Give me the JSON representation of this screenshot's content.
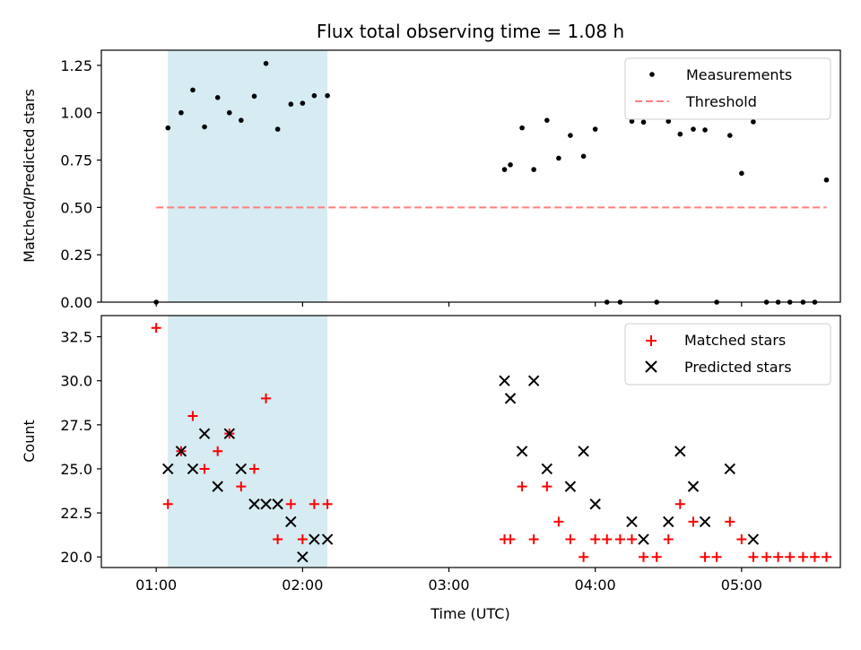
{
  "chart_data": [
    {
      "type": "scatter",
      "title": "Flux total observing time = 1.08 h",
      "xlabel": "",
      "ylabel": "Matched/Predicted stars",
      "ylim": [
        0.0,
        1.33
      ],
      "xlim": [
        0.625,
        5.675
      ],
      "yticks": [
        0.0,
        0.25,
        0.5,
        0.75,
        1.0,
        1.25
      ],
      "ytick_labels": [
        "0.00",
        "0.25",
        "0.50",
        "0.75",
        "1.00",
        "1.25"
      ],
      "shaded_span": {
        "x_start": 1.08,
        "x_end": 2.17,
        "color": "#add8e6"
      },
      "legend": {
        "placement": "top-right",
        "entries": [
          "Measurements",
          "Threshold"
        ]
      },
      "series": [
        {
          "name": "Measurements",
          "marker": "dot",
          "color": "#000000",
          "x": [
            1.0,
            1.08,
            1.17,
            1.25,
            1.33,
            1.42,
            1.5,
            1.58,
            1.67,
            1.75,
            1.83,
            1.92,
            2.0,
            2.08,
            2.17,
            3.38,
            3.42,
            3.5,
            3.58,
            3.67,
            3.75,
            3.83,
            3.92,
            4.0,
            4.08,
            4.17,
            4.25,
            4.33,
            4.42,
            4.5,
            4.58,
            4.67,
            4.75,
            4.83,
            4.92,
            5.0,
            5.08,
            5.17,
            5.25,
            5.33,
            5.42,
            5.5,
            5.58
          ],
          "y": [
            0.0,
            0.92,
            1.0,
            1.12,
            0.925,
            1.08,
            1.0,
            0.96,
            1.087,
            1.26,
            0.913,
            1.045,
            1.05,
            1.09,
            1.09,
            0.7,
            0.725,
            0.92,
            0.7,
            0.96,
            0.76,
            0.88,
            0.77,
            0.913,
            0.0,
            0.0,
            0.955,
            0.95,
            0.0,
            0.955,
            0.887,
            0.913,
            0.909,
            0.0,
            0.88,
            0.68,
            0.952,
            0.0,
            0.0,
            0.0,
            0.0,
            0.0,
            0.645
          ]
        },
        {
          "name": "Threshold",
          "style": "dashed",
          "color": "#ff7f7f",
          "x": [
            1.0,
            5.58
          ],
          "y": [
            0.5,
            0.5
          ]
        }
      ]
    },
    {
      "type": "scatter",
      "title": "",
      "xlabel": "Time (UTC)",
      "ylabel": "Count",
      "ylim": [
        19.4,
        33.7
      ],
      "xlim": [
        0.625,
        5.675
      ],
      "yticks": [
        20.0,
        22.5,
        25.0,
        27.5,
        30.0,
        32.5
      ],
      "ytick_labels": [
        "20.0",
        "22.5",
        "25.0",
        "27.5",
        "30.0",
        "32.5"
      ],
      "xticks": [
        1.0,
        2.0,
        3.0,
        4.0,
        5.0
      ],
      "xtick_labels": [
        "01:00",
        "02:00",
        "03:00",
        "04:00",
        "05:00"
      ],
      "shaded_span": {
        "x_start": 1.08,
        "x_end": 2.17,
        "color": "#add8e6"
      },
      "legend": {
        "placement": "top-right",
        "entries": [
          "Matched stars",
          "Predicted stars"
        ]
      },
      "series": [
        {
          "name": "Matched stars",
          "marker": "plus",
          "color": "#ff0000",
          "x": [
            1.0,
            1.08,
            1.17,
            1.25,
            1.33,
            1.42,
            1.5,
            1.58,
            1.67,
            1.75,
            1.83,
            1.92,
            2.0,
            2.08,
            2.17,
            3.38,
            3.42,
            3.5,
            3.58,
            3.67,
            3.75,
            3.83,
            3.92,
            4.0,
            4.08,
            4.17,
            4.25,
            4.33,
            4.42,
            4.5,
            4.58,
            4.67,
            4.75,
            4.83,
            4.92,
            5.0,
            5.08,
            5.17,
            5.25,
            5.33,
            5.42,
            5.5,
            5.58
          ],
          "y": [
            33,
            23,
            26,
            28,
            25,
            26,
            27,
            24,
            25,
            29,
            21,
            23,
            21,
            23,
            23,
            21,
            21,
            24,
            21,
            24,
            22,
            21,
            20,
            21,
            21,
            21,
            21,
            20,
            20,
            21,
            23,
            22,
            20,
            20,
            22,
            21,
            20,
            20,
            20,
            20,
            20,
            20,
            20
          ]
        },
        {
          "name": "Predicted stars",
          "marker": "x",
          "color": "#000000",
          "x": [
            1.08,
            1.17,
            1.25,
            1.33,
            1.42,
            1.5,
            1.58,
            1.67,
            1.75,
            1.83,
            1.92,
            2.0,
            2.08,
            2.17,
            3.38,
            3.42,
            3.5,
            3.58,
            3.67,
            3.83,
            3.92,
            4.0,
            4.25,
            4.33,
            4.5,
            4.58,
            4.67,
            4.75,
            4.92,
            5.08
          ],
          "y": [
            25,
            26,
            25,
            27,
            24,
            27,
            25,
            23,
            23,
            23,
            22,
            20,
            21,
            21,
            30,
            29,
            26,
            30,
            25,
            24,
            26,
            23,
            22,
            21,
            22,
            26,
            24,
            22,
            25,
            21
          ]
        }
      ]
    }
  ]
}
